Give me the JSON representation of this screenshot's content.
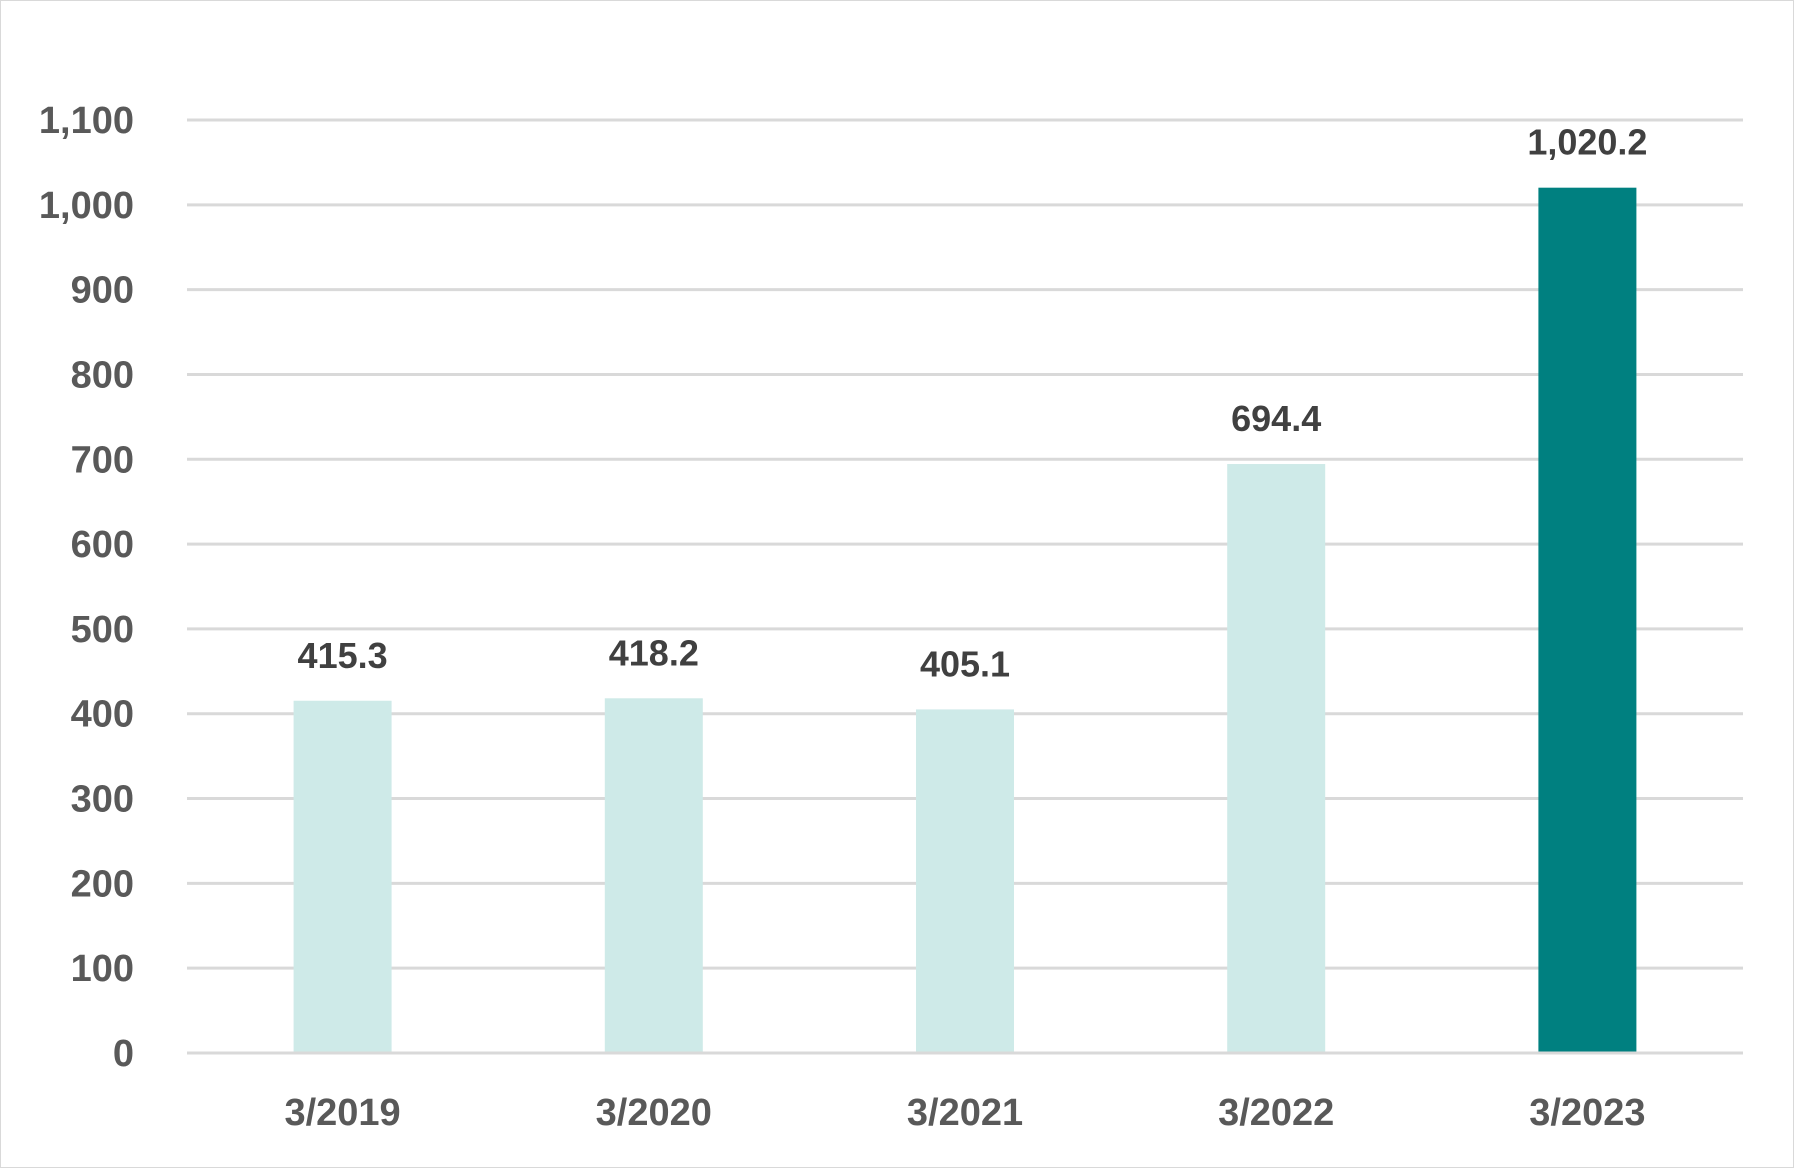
{
  "chart_data": {
    "type": "bar",
    "title": "",
    "xlabel": "",
    "ylabel": "",
    "categories": [
      "3/2019",
      "3/2020",
      "3/2021",
      "3/2022",
      "3/2023"
    ],
    "values": [
      415.3,
      418.2,
      405.1,
      694.4,
      1020.2
    ],
    "data_labels": [
      "415.3",
      "418.2",
      "405.1",
      "694.4",
      "1,020.2"
    ],
    "ylim": [
      0,
      1100
    ],
    "yticks": [
      0,
      100,
      200,
      300,
      400,
      500,
      600,
      700,
      800,
      900,
      1000,
      1100
    ],
    "ytick_labels": [
      "0",
      "100",
      "200",
      "300",
      "400",
      "500",
      "600",
      "700",
      "800",
      "900",
      "1,000",
      "1,100"
    ],
    "grid": true,
    "legend": "none",
    "colors": {
      "default_bar": "#ceeae8",
      "highlight_bar": "#008080",
      "gridline": "#d9d9d9",
      "tick_text": "#595959",
      "label_text": "#404040"
    },
    "highlight_index": 4
  }
}
